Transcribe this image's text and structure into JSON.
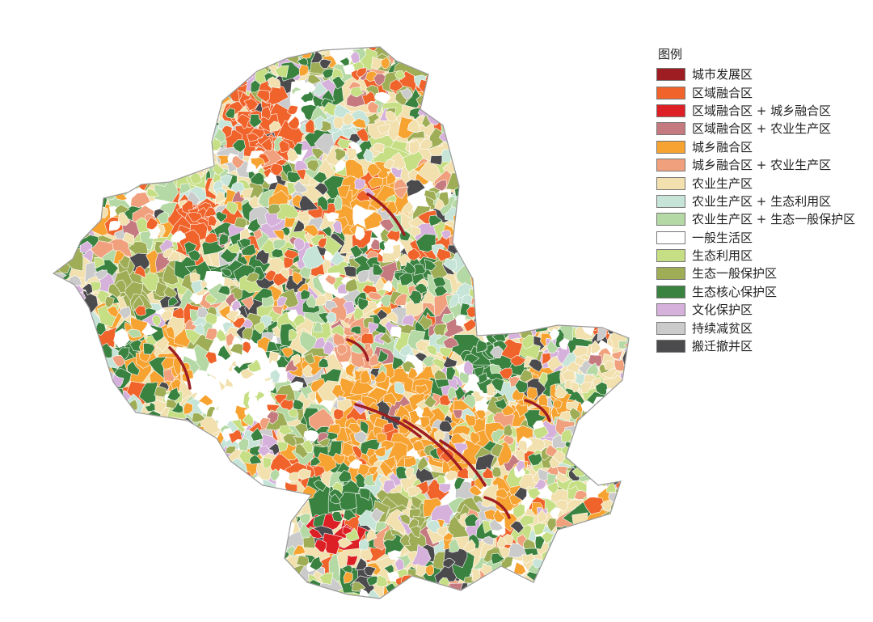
{
  "legend": {
    "title": "图例",
    "items": [
      {
        "label": "城市发展区",
        "color": "#9e1d22"
      },
      {
        "label": "区域融合区",
        "color": "#f0632a"
      },
      {
        "label": "区域融合区 + 城乡融合区",
        "color": "#dd1f26"
      },
      {
        "label": "区域融合区 + 农业生产区",
        "color": "#c47a7e"
      },
      {
        "label": "城乡融合区",
        "color": "#f7a332"
      },
      {
        "label": "城乡融合区 + 农业生产区",
        "color": "#f0a07c"
      },
      {
        "label": "农业生产区",
        "color": "#f2e1ae"
      },
      {
        "label": "农业生产区 + 生态利用区",
        "color": "#c6e4d8"
      },
      {
        "label": "农业生产区 + 生态一般保护区",
        "color": "#b5d9a4"
      },
      {
        "label": "一般生活区",
        "color": "#ffffff"
      },
      {
        "label": "生态利用区",
        "color": "#c6df84"
      },
      {
        "label": "生态一般保护区",
        "color": "#9fae56"
      },
      {
        "label": "生态核心保护区",
        "color": "#3a8240"
      },
      {
        "label": "文化保护区",
        "color": "#d5b1db"
      },
      {
        "label": "持续减贫区",
        "color": "#cbcbcb"
      },
      {
        "label": "搬迁撤并区",
        "color": "#4b4a4d"
      }
    ]
  }
}
